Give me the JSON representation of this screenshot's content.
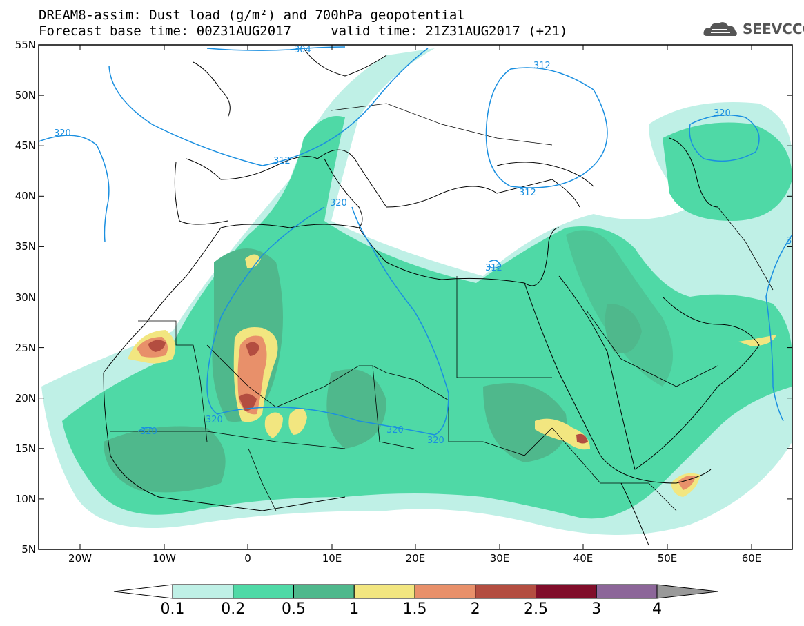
{
  "header": {
    "title_line1": "DREAM8-assim: Dust load (g/m²) and 700hPa geopotential",
    "title_line2": "Forecast base time: 00Z31AUG2017     valid time: 21Z31AUG2017 (+21)"
  },
  "logo": {
    "text": "SEEVCCC",
    "icon": "cloud-icon",
    "color": "#555555"
  },
  "map": {
    "lat_labels": [
      "55N",
      "50N",
      "45N",
      "40N",
      "35N",
      "30N",
      "25N",
      "20N",
      "15N",
      "10N",
      "5N"
    ],
    "lon_labels": [
      "20W",
      "10W",
      "0",
      "10E",
      "20E",
      "30E",
      "40E",
      "50E",
      "60E"
    ],
    "contour_labels": [
      "304",
      "312",
      "312",
      "312",
      "312",
      "320",
      "320",
      "320",
      "320",
      "320",
      "320",
      "320",
      "3"
    ],
    "contour_color": "#1a8fe0"
  },
  "colorbar": {
    "tick_labels": [
      "0.1",
      "0.2",
      "0.5",
      "1",
      "1.5",
      "2",
      "2.5",
      "3",
      "4"
    ],
    "colors": [
      "#bff0e6",
      "#4fd9a6",
      "#4fb88c",
      "#f2e680",
      "#e8906a",
      "#b34d40",
      "#800d2a",
      "#8c6699",
      "#999999"
    ]
  }
}
